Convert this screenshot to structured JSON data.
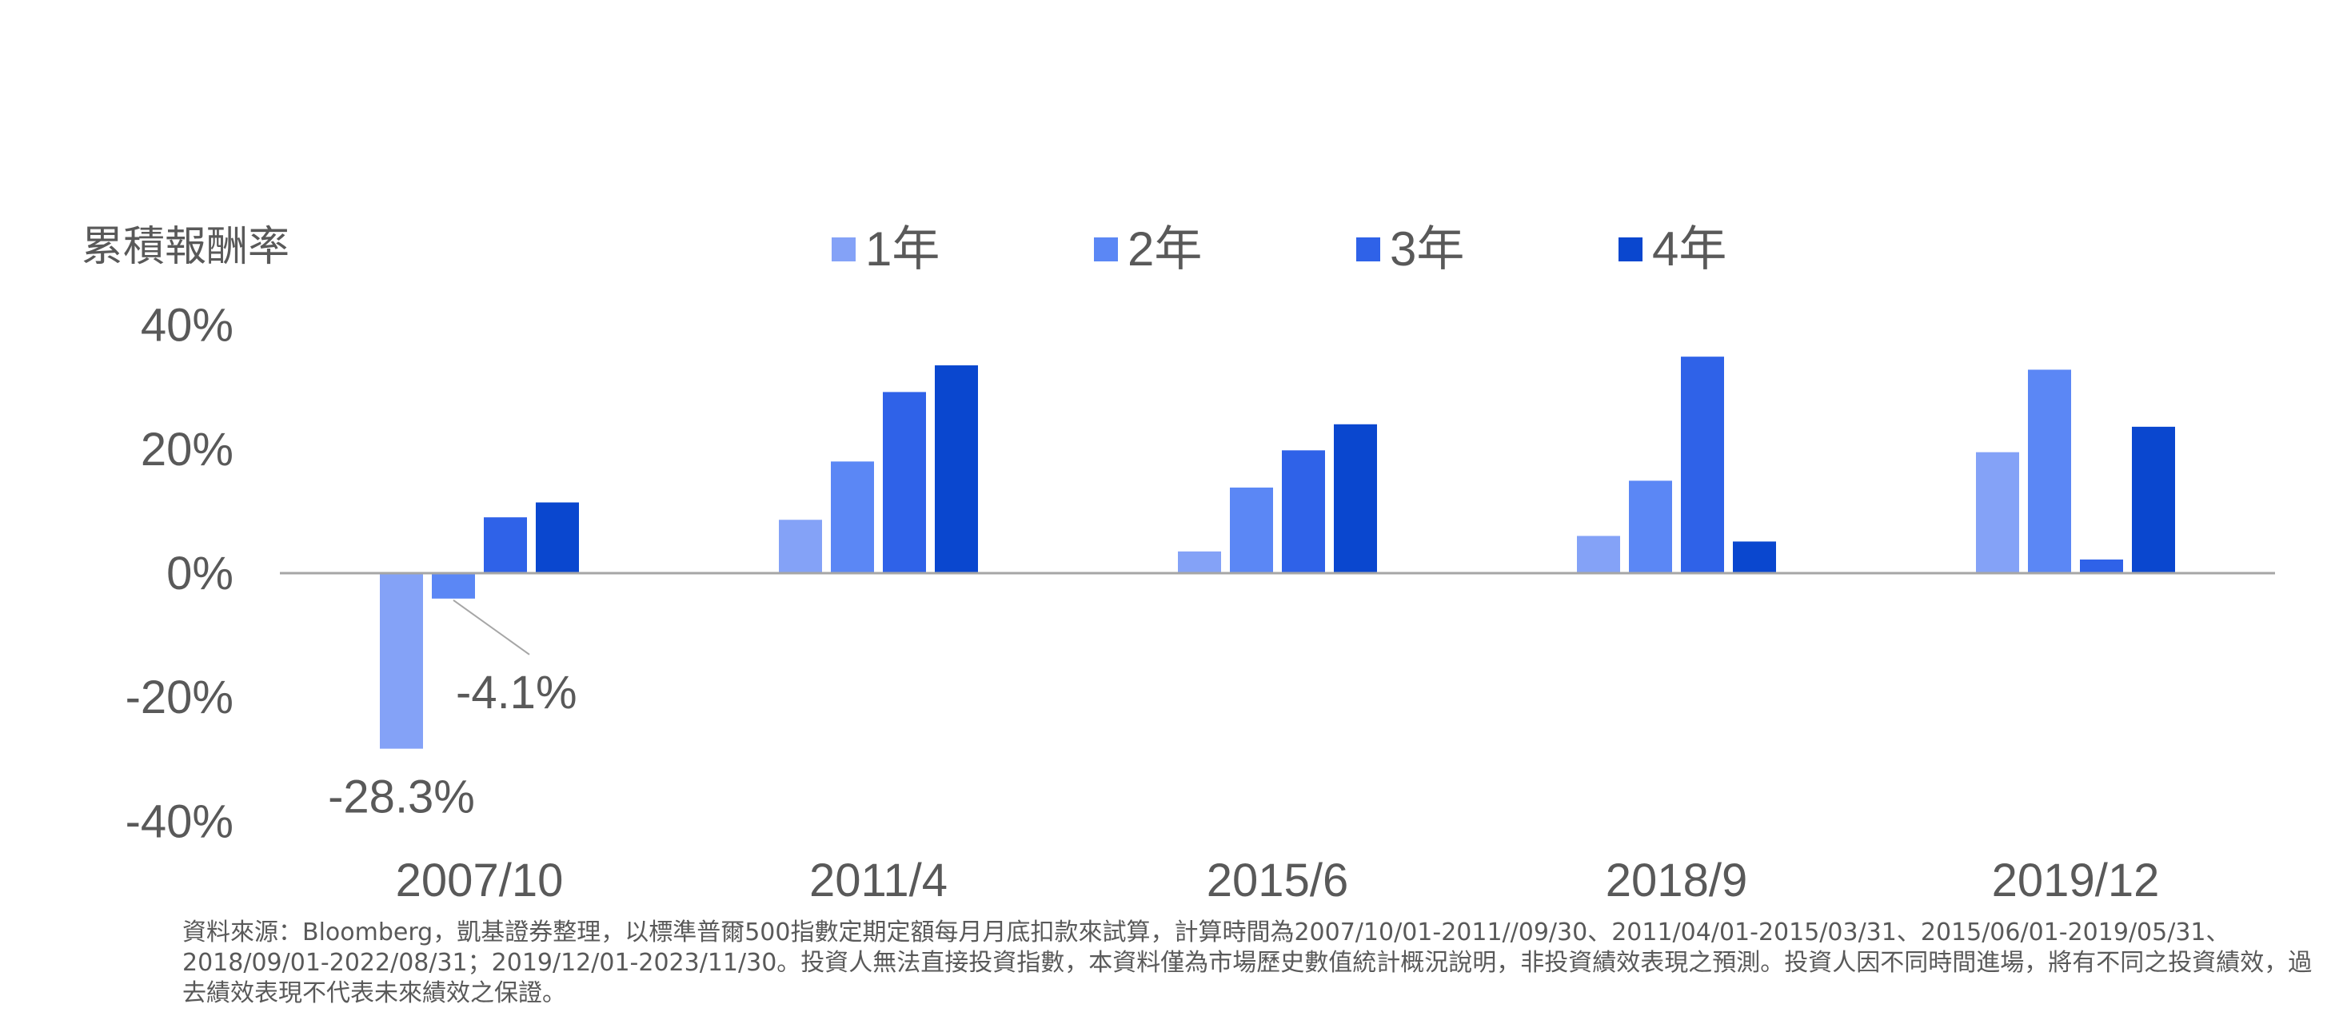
{
  "chart_data": {
    "type": "bar",
    "ylabel": "累積報酬率",
    "categories": [
      "2007/10",
      "2011/4",
      "2015/6",
      "2018/9",
      "2019/12"
    ],
    "series": [
      {
        "name": "1年",
        "color": "#84A2F7",
        "values": [
          -28.3,
          8.6,
          3.5,
          6.0,
          19.5
        ]
      },
      {
        "name": "2年",
        "color": "#5B87F5",
        "values": [
          -4.1,
          18.0,
          13.8,
          14.9,
          32.8
        ]
      },
      {
        "name": "3年",
        "color": "#2F62E8",
        "values": [
          9.0,
          29.2,
          19.8,
          34.9,
          2.2
        ]
      },
      {
        "name": "4年",
        "color": "#0A47CF",
        "values": [
          11.4,
          33.5,
          24.0,
          5.1,
          23.6
        ]
      }
    ],
    "ylim": [
      -40,
      40
    ],
    "yticks": [
      "40%",
      "20%",
      "0%",
      "-20%",
      "-40%"
    ],
    "annotations": [
      {
        "text": "-28.3%",
        "series": 0,
        "category": 0
      },
      {
        "text": "-4.1%",
        "series": 1,
        "category": 0
      }
    ],
    "grid": false,
    "legend_position": "top"
  },
  "source_note": "資料來源：Bloomberg，凱基證券整理，以標準普爾500指數定期定額每月月底扣款來試算，計算時間為2007/10/01-2011//09/30、2011/04/01-2015/03/31、2015/06/01-2019/05/31、2018/09/01-2022/08/31；2019/12/01-2023/11/30。投資人無法直接投資指數，本資料僅為市場歷史數值統計概況說明，非投資績效表現之預測。投資人因不同時間進場，將有不同之投資績效，過去績效表現不代表未來績效之保證。"
}
